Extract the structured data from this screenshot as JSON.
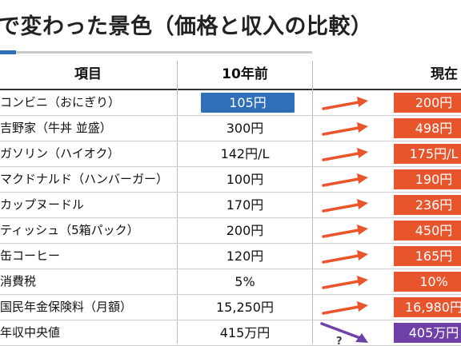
{
  "title": "で変わった景色（価格と収入の比較）",
  "header": {
    "item": "項目",
    "past": "10年前",
    "now": "現在"
  },
  "colors": {
    "past_highlight": "#2f6fba",
    "increase": "#e8552d",
    "decrease": "#6f41a8",
    "title_accent": "#2f6fba"
  },
  "rows": [
    {
      "item": "コンビニ（おにぎり）",
      "past": "105円",
      "now": "200円",
      "trend": "up",
      "past_highlight": true
    },
    {
      "item": "吉野家（牛丼 並盛）",
      "past": "300円",
      "now": "498円",
      "trend": "up"
    },
    {
      "item": "ガソリン（ハイオク）",
      "past": "142円/L",
      "now": "175円/L",
      "trend": "up"
    },
    {
      "item": "マクドナルド（ハンバーガー）",
      "past": "100円",
      "now": "190円",
      "trend": "up"
    },
    {
      "item": "カップヌードル",
      "past": "170円",
      "now": "236円",
      "trend": "up"
    },
    {
      "item": "ティッシュ（5箱パック）",
      "past": "200円",
      "now": "450円",
      "trend": "up"
    },
    {
      "item": "缶コーヒー",
      "past": "120円",
      "now": "165円",
      "trend": "up"
    },
    {
      "item": "消費税",
      "past": "5%",
      "now": "10%",
      "trend": "up"
    },
    {
      "item": "国民年金保険料（月額）",
      "past": "15,250円",
      "now": "16,980円",
      "trend": "up"
    },
    {
      "item": "年収中央値",
      "past": "415万円",
      "now": "405万円",
      "trend": "down",
      "mark": "?"
    }
  ]
}
